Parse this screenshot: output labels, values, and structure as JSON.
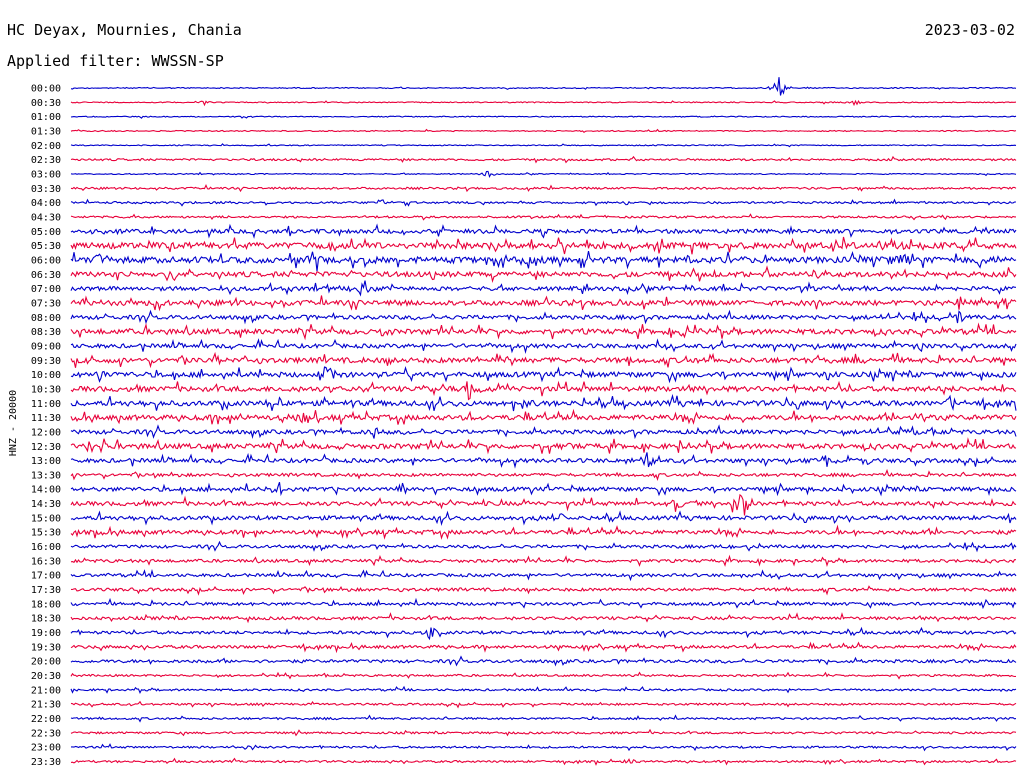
{
  "header": {
    "station": "HC Deyax, Mournies, Chania",
    "date": "2023-03-02",
    "filter": "Applied filter: WWSSN-SP"
  },
  "chart_data": {
    "type": "line",
    "ylabel": "HNZ - 20000",
    "row_labels": [
      "00:00",
      "00:30",
      "01:00",
      "01:30",
      "02:00",
      "02:30",
      "03:00",
      "03:30",
      "04:00",
      "04:30",
      "05:00",
      "05:30",
      "06:00",
      "06:30",
      "07:00",
      "07:30",
      "08:00",
      "08:30",
      "09:00",
      "09:30",
      "10:00",
      "10:30",
      "11:00",
      "11:30",
      "12:00",
      "12:30",
      "13:00",
      "13:30",
      "14:00",
      "14:30",
      "15:00",
      "15:30",
      "16:00",
      "16:30",
      "17:00",
      "17:30",
      "18:00",
      "18:30",
      "19:00",
      "19:30",
      "20:00",
      "20:30",
      "21:00",
      "21:30",
      "22:00",
      "22:30",
      "23:00",
      "23:30"
    ],
    "colors": {
      "even_rows": "#0000cc",
      "odd_rows": "#e8003a"
    },
    "noise_levels": [
      1,
      1,
      1,
      1,
      1,
      2,
      1,
      2,
      2,
      2,
      4,
      6,
      6,
      5,
      4,
      5,
      4,
      5,
      4,
      5,
      5,
      5,
      5,
      5,
      4,
      5,
      4,
      3,
      4,
      4,
      4,
      4,
      3,
      3,
      3,
      3,
      3,
      3,
      3,
      3,
      3,
      2,
      2,
      2,
      2,
      2,
      2,
      2
    ],
    "events": [
      {
        "row": 0,
        "x": 0.75,
        "amp": 14
      },
      {
        "row": 0,
        "x": 0.0,
        "amp": 2
      },
      {
        "row": 1,
        "x": 0.14,
        "amp": 3
      },
      {
        "row": 1,
        "x": 0.83,
        "amp": 3
      },
      {
        "row": 6,
        "x": 0.44,
        "amp": 4
      },
      {
        "row": 8,
        "x": 0.33,
        "amp": 4
      },
      {
        "row": 11,
        "x": 0.6,
        "amp": 6
      },
      {
        "row": 11,
        "x": 0.87,
        "amp": 10
      },
      {
        "row": 12,
        "x": 0.03,
        "amp": 8
      },
      {
        "row": 12,
        "x": 0.26,
        "amp": 10
      },
      {
        "row": 12,
        "x": 0.66,
        "amp": 7
      },
      {
        "row": 12,
        "x": 0.88,
        "amp": 10
      },
      {
        "row": 13,
        "x": 0.79,
        "amp": 7
      },
      {
        "row": 14,
        "x": 0.31,
        "amp": 12
      },
      {
        "row": 15,
        "x": 0.94,
        "amp": 8
      },
      {
        "row": 15,
        "x": 0.99,
        "amp": 7
      },
      {
        "row": 16,
        "x": 0.94,
        "amp": 12
      },
      {
        "row": 17,
        "x": 0.33,
        "amp": 6
      },
      {
        "row": 17,
        "x": 0.65,
        "amp": 6
      },
      {
        "row": 18,
        "x": 0.9,
        "amp": 6
      },
      {
        "row": 19,
        "x": 0.15,
        "amp": 10
      },
      {
        "row": 19,
        "x": 0.46,
        "amp": 10
      },
      {
        "row": 20,
        "x": 0.03,
        "amp": 6
      },
      {
        "row": 20,
        "x": 0.27,
        "amp": 10
      },
      {
        "row": 20,
        "x": 0.8,
        "amp": 6
      },
      {
        "row": 21,
        "x": 0.42,
        "amp": 10
      },
      {
        "row": 22,
        "x": 0.22,
        "amp": 6
      },
      {
        "row": 22,
        "x": 0.48,
        "amp": 6
      },
      {
        "row": 22,
        "x": 0.93,
        "amp": 12
      },
      {
        "row": 23,
        "x": 0.24,
        "amp": 10
      },
      {
        "row": 23,
        "x": 0.9,
        "amp": 8
      },
      {
        "row": 24,
        "x": 0.32,
        "amp": 8
      },
      {
        "row": 24,
        "x": 0.89,
        "amp": 6
      },
      {
        "row": 25,
        "x": 0.02,
        "amp": 8
      },
      {
        "row": 25,
        "x": 0.52,
        "amp": 6
      },
      {
        "row": 26,
        "x": 0.61,
        "amp": 8
      },
      {
        "row": 26,
        "x": 0.8,
        "amp": 8
      },
      {
        "row": 26,
        "x": 0.84,
        "amp": 7
      },
      {
        "row": 28,
        "x": 0.22,
        "amp": 8
      },
      {
        "row": 28,
        "x": 0.35,
        "amp": 7
      },
      {
        "row": 29,
        "x": 0.64,
        "amp": 8
      },
      {
        "row": 29,
        "x": 0.71,
        "amp": 22
      },
      {
        "row": 30,
        "x": 0.52,
        "amp": 5
      },
      {
        "row": 32,
        "x": 0.7,
        "amp": 5
      },
      {
        "row": 38,
        "x": 0.38,
        "amp": 8
      },
      {
        "row": 46,
        "x": 0.19,
        "amp": 4
      },
      {
        "row": 47,
        "x": 0.59,
        "amp": 4
      }
    ]
  }
}
